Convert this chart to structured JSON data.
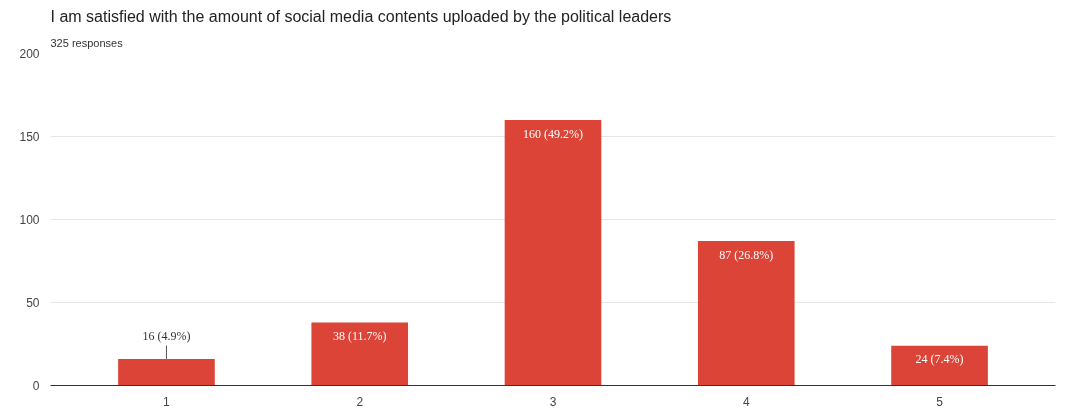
{
  "chart_data": {
    "type": "bar",
    "title": "I am satisfied with the amount of social media contents uploaded by the political leaders",
    "subtitle": "325 responses",
    "categories": [
      "1",
      "2",
      "3",
      "4",
      "5"
    ],
    "values": [
      16,
      38,
      160,
      87,
      24
    ],
    "value_labels": [
      "16 (4.9%)",
      "38 (11.7%)",
      "160 (49.2%)",
      "87 (26.8%)",
      "24 (7.4%)"
    ],
    "color": "#db4437",
    "ylim": [
      0,
      200
    ],
    "yticks": [
      0,
      50,
      100,
      150,
      200
    ],
    "grid": "y"
  }
}
